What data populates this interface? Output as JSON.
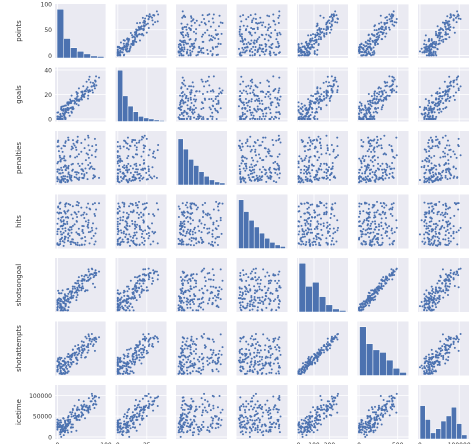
{
  "chart_data": {
    "type": "scatter",
    "title": "",
    "variables": [
      "points",
      "goals",
      "penalties",
      "hits",
      "shotsongoal",
      "shotattempts",
      "icetime"
    ],
    "diagonal": "histogram",
    "offdiagonal": "scatter",
    "grid": true,
    "colors": {
      "panel_background": "#EAEAF2",
      "grid": "#ffffff",
      "marker": "#4C72B0",
      "bar": "#4C72B0",
      "bar_edge": "#ffffff"
    },
    "ranges": {
      "points": [
        -5,
        100
      ],
      "goals": [
        -2,
        42
      ],
      "penalties": [
        -5,
        105
      ],
      "hits": [
        -5,
        110
      ],
      "shotsongoal": [
        -10,
        320
      ],
      "shotattempts": [
        -20,
        640
      ],
      "icetime": [
        -5000,
        125000
      ]
    },
    "ticks": {
      "points": [
        0,
        50,
        100
      ],
      "goals": [
        0,
        20,
        40
      ],
      "shotsongoal": [
        0,
        100,
        200
      ],
      "shotattempts": [
        0,
        500
      ],
      "icetime": [
        0,
        50000,
        100000
      ]
    },
    "x_tick_labels": {
      "points": [
        "0",
        "100"
      ],
      "goals": [
        "0",
        "25"
      ],
      "penalties": [],
      "hits": [],
      "shotsongoal": [
        "0",
        "100",
        "200"
      ],
      "shotattempts": [
        "0",
        "500"
      ],
      "icetime": [
        "0",
        "100000"
      ]
    },
    "x_tick_values": {
      "points": [
        0,
        100
      ],
      "goals": [
        0,
        25
      ],
      "penalties": [],
      "hits": [],
      "shotsongoal": [
        0,
        100,
        200
      ],
      "shotattempts": [
        0,
        500
      ],
      "icetime": [
        0,
        100000
      ]
    },
    "y_tick_labels": {
      "points": [
        "0",
        "50",
        "100"
      ],
      "goals": [
        "0",
        "20",
        "40"
      ],
      "penalties": [],
      "hits": [],
      "shotsongoal": [],
      "shotattempts": [],
      "icetime": [
        "0",
        "50000",
        "100000"
      ]
    },
    "y_tick_values": {
      "points": [
        0,
        50,
        100
      ],
      "goals": [
        0,
        20,
        40
      ],
      "penalties": [],
      "hits": [],
      "shotsongoal": [],
      "shotattempts": [],
      "icetime": [
        0,
        50000,
        100000
      ]
    },
    "histograms": {
      "points": [
        0.95,
        0.38,
        0.2,
        0.13,
        0.08,
        0.04,
        0.03
      ],
      "goals": [
        1.0,
        0.5,
        0.3,
        0.19,
        0.1,
        0.07,
        0.05,
        0.03,
        0.02
      ],
      "penalties": [
        0.9,
        0.7,
        0.5,
        0.38,
        0.26,
        0.17,
        0.1,
        0.06,
        0.04
      ],
      "hits": [
        0.95,
        0.72,
        0.55,
        0.42,
        0.3,
        0.2,
        0.12,
        0.07,
        0.04
      ],
      "shotsongoal": [
        0.95,
        0.5,
        0.58,
        0.3,
        0.14,
        0.06,
        0.03
      ],
      "shotattempts": [
        0.95,
        0.62,
        0.5,
        0.45,
        0.3,
        0.14,
        0.06
      ],
      "icetime": [
        0.65,
        0.38,
        0.12,
        0.2,
        0.35,
        0.45,
        0.62,
        0.3,
        0.08
      ]
    },
    "data_points": {
      "note": "",
      "n": 160
    }
  }
}
